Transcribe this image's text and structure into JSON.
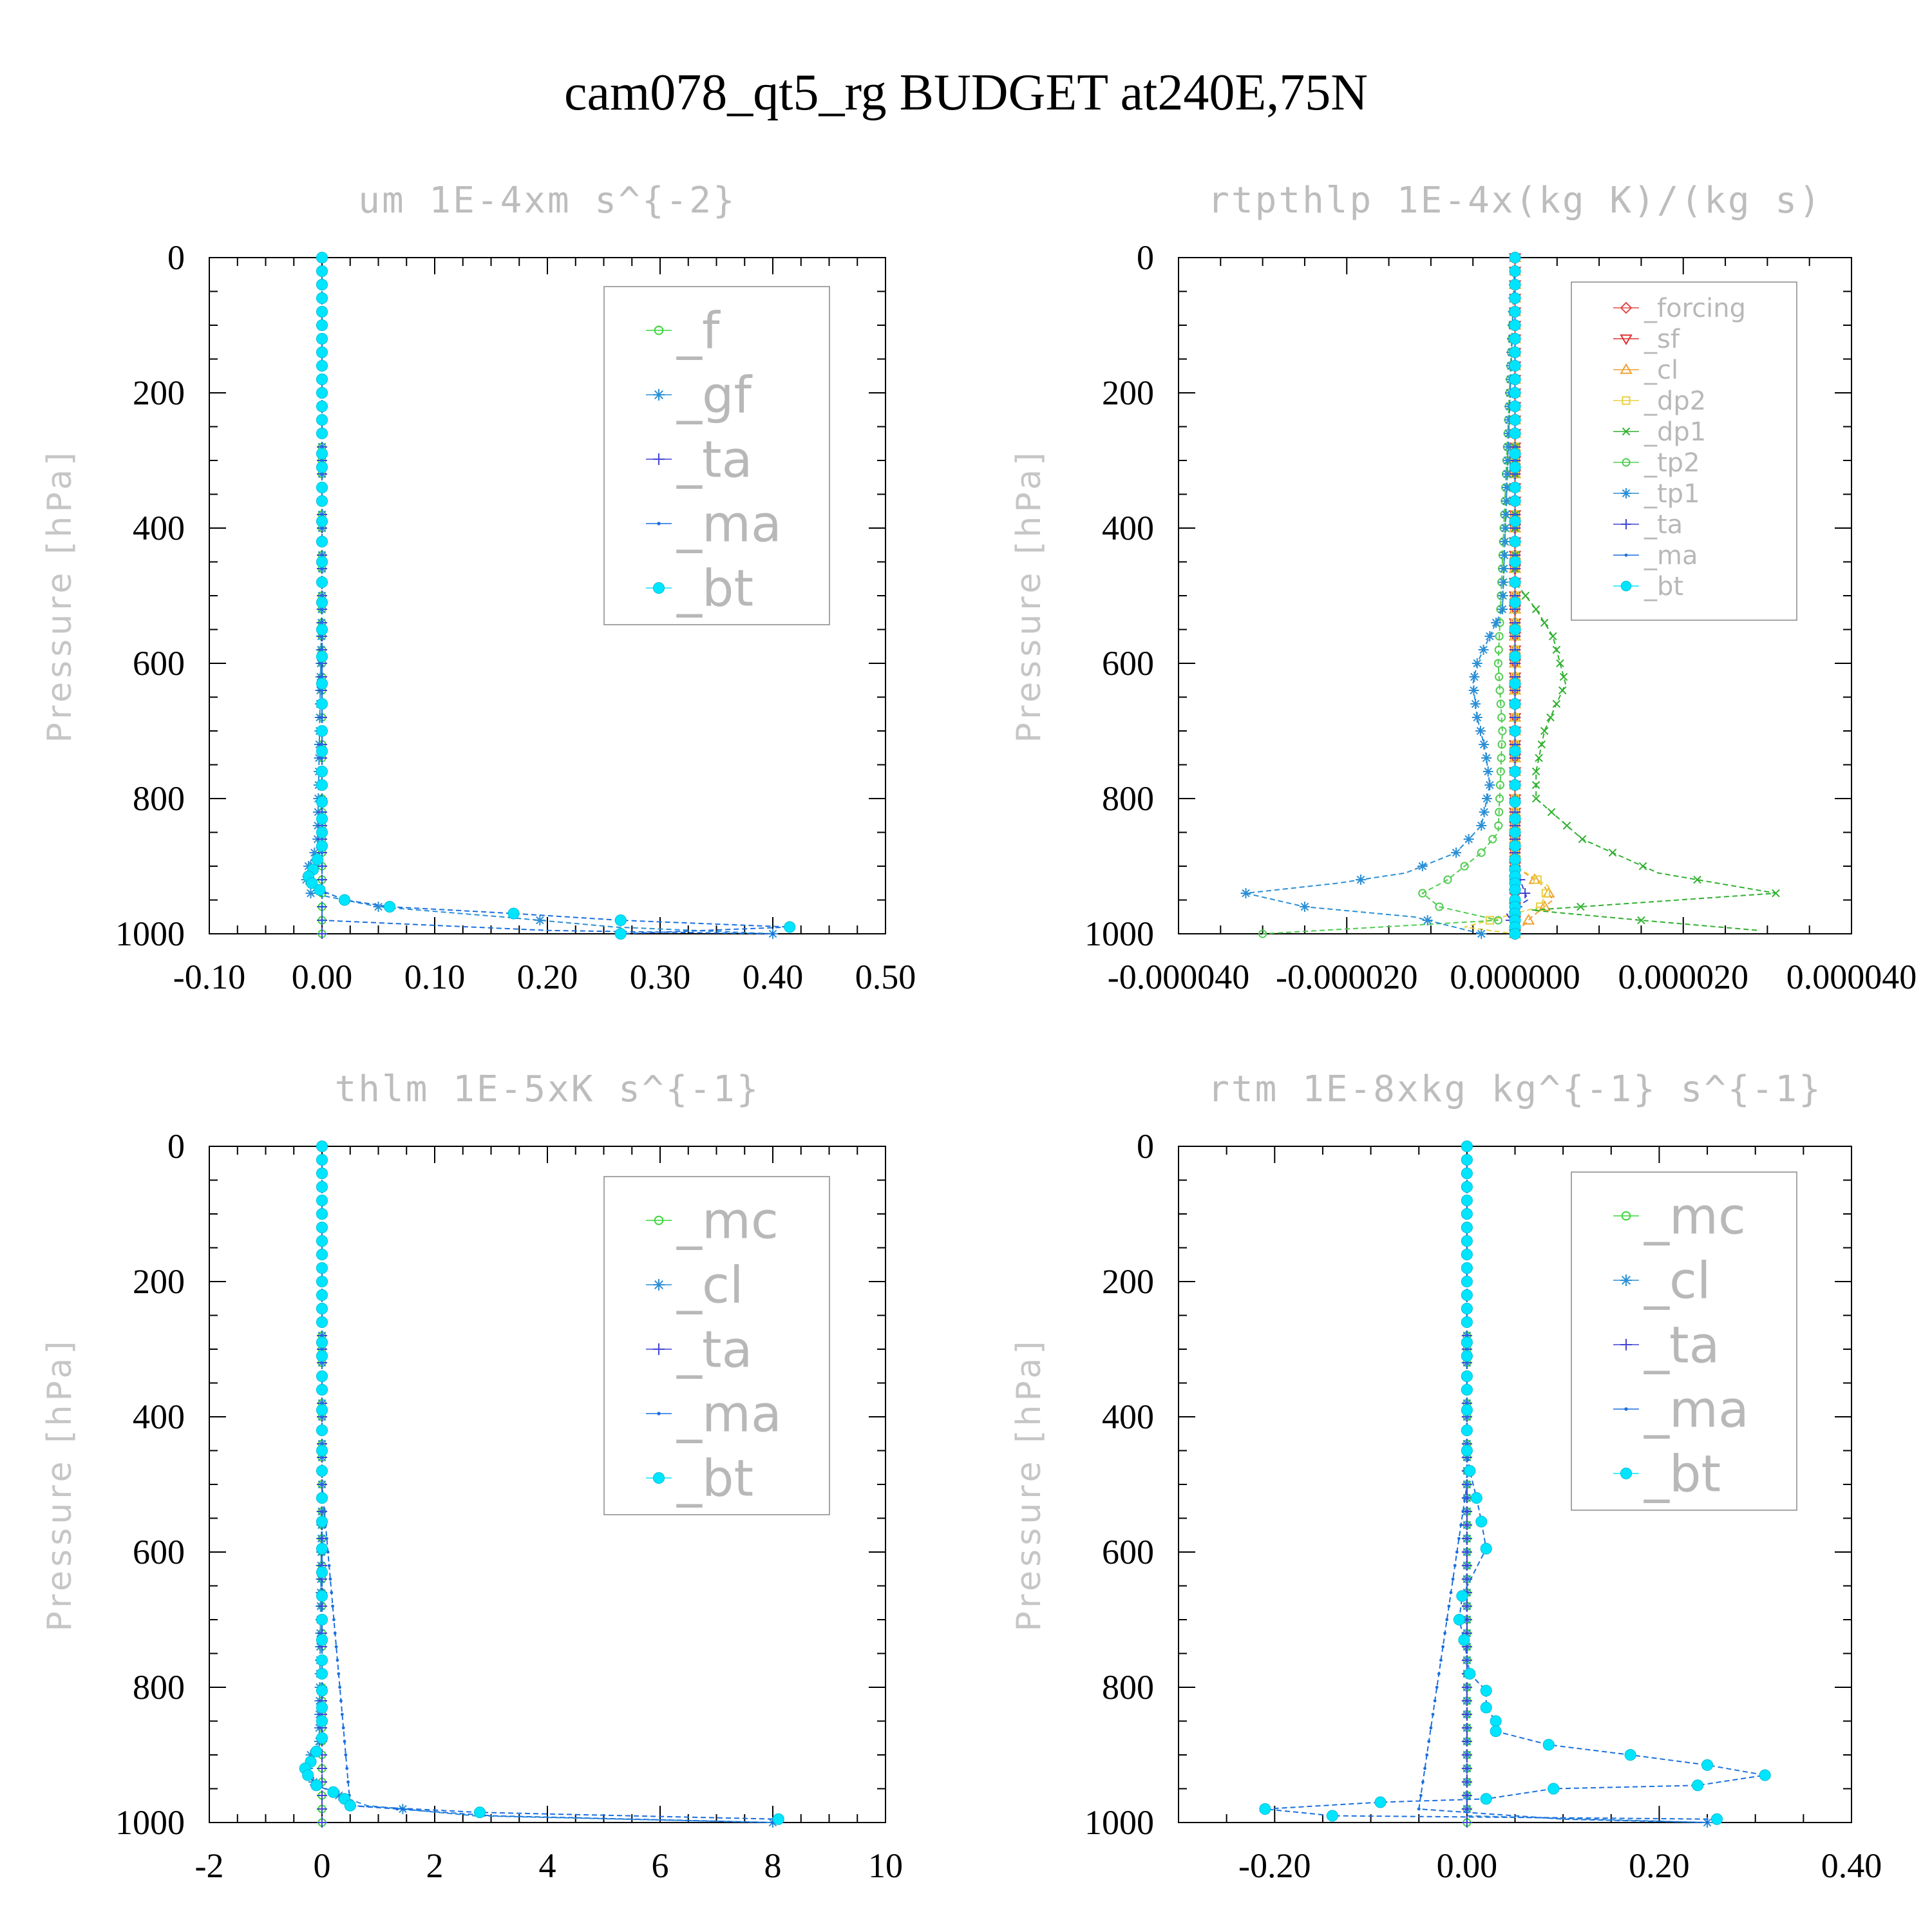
{
  "title": "cam078_qt5_rg  BUDGET at240E,75N",
  "colors": {
    "f": "#39d639",
    "gf": "#2a8fd6",
    "ta": "#4242d6",
    "ma": "#1a6fe0",
    "bt": "#00e5ff",
    "forcing": "#e24a4a",
    "sf": "#e03030",
    "cl_orange": "#f0a030",
    "dp2": "#e8d040",
    "dp1": "#2fb02f",
    "tp2": "#50cc50",
    "tp1": "#2a8fd6",
    "mc": "#39d639",
    "cl": "#2a8fd6",
    "axis": "#000000"
  },
  "chart_data": [
    {
      "type": "line",
      "title": "um  1E-4xm s^{-2}",
      "ylabel": "Pressure [hPa]",
      "xlim": [
        -0.1,
        0.5
      ],
      "ylim": [
        0,
        1000
      ],
      "xticks": [
        "-0.10",
        "0.00",
        "0.10",
        "0.20",
        "0.30",
        "0.40",
        "0.50"
      ],
      "yticks": [
        "0",
        "200",
        "400",
        "600",
        "800",
        "1000"
      ],
      "legend": [
        "_f",
        "_gf",
        "_ta",
        "_ma",
        "_bt"
      ],
      "legend_position": "top-right",
      "series": [
        {
          "name": "_f",
          "p": [
            0,
            500,
            900,
            950,
            1000
          ],
          "x": [
            0,
            0,
            0,
            0,
            0
          ]
        },
        {
          "name": "_gf",
          "p": [
            0,
            500,
            870,
            900,
            920,
            940,
            960,
            975,
            990,
            1000
          ],
          "x": [
            0,
            0,
            -0.004,
            -0.012,
            -0.014,
            -0.01,
            0.05,
            0.16,
            0.26,
            0.4
          ]
        },
        {
          "name": "_ta",
          "p": [
            0,
            500,
            950,
            1000
          ],
          "x": [
            0,
            0,
            0,
            0
          ]
        },
        {
          "name": "_ma",
          "p": [
            0,
            500,
            980,
            995,
            1000
          ],
          "x": [
            0,
            0,
            0,
            0.2,
            0.4
          ]
        },
        {
          "name": "_bt",
          "p": [
            0,
            20,
            40,
            60,
            80,
            100,
            120,
            140,
            160,
            180,
            200,
            220,
            240,
            260,
            290,
            310,
            340,
            360,
            390,
            420,
            450,
            480,
            510,
            550,
            590,
            630,
            660,
            700,
            730,
            760,
            780,
            805,
            830,
            850,
            870,
            890,
            905,
            915,
            925,
            935,
            950,
            960,
            970,
            980,
            990,
            1000
          ],
          "x": [
            0,
            0,
            0,
            0,
            0,
            0,
            0,
            0,
            0,
            0,
            0,
            0,
            0,
            0,
            0,
            0,
            0,
            0,
            0,
            0,
            0,
            0,
            0,
            0,
            0,
            0,
            0,
            0,
            0,
            0,
            0,
            0,
            0,
            0,
            0,
            -0.004,
            -0.008,
            -0.012,
            -0.009,
            -0.002,
            0.02,
            0.06,
            0.17,
            0.265,
            0.415,
            0.265
          ]
        }
      ]
    },
    {
      "type": "line",
      "title": "rtpthlp  1E-4x(kg K)/(kg s)",
      "ylabel": "Pressure [hPa]",
      "xlim": [
        -4e-05,
        4e-05
      ],
      "ylim": [
        0,
        1000
      ],
      "xticks": [
        "-0.000040",
        "-0.000020",
        "0.000000",
        "0.000020",
        "0.000040"
      ],
      "yticks": [
        "0",
        "200",
        "400",
        "600",
        "800",
        "1000"
      ],
      "legend": [
        "_forcing",
        "_sf",
        "_cl",
        "_dp2",
        "_dp1",
        "_tp2",
        "_tp1",
        "_ta",
        "_ma",
        "_bt"
      ],
      "legend_position": "top-right",
      "series": [
        {
          "name": "_forcing",
          "p": [
            0,
            1000
          ],
          "x": [
            0,
            0
          ]
        },
        {
          "name": "_sf",
          "p": [
            0,
            1000
          ],
          "x": [
            0,
            0
          ]
        },
        {
          "name": "_cl",
          "p": [
            0,
            900,
            930,
            950,
            975,
            1000
          ],
          "x": [
            0,
            0,
            3.5e-06,
            4.5e-06,
            2e-06,
            0
          ]
        },
        {
          "name": "_dp2",
          "p": [
            0,
            900,
            930,
            960,
            990,
            1000
          ],
          "x": [
            0,
            0,
            4e-06,
            3e-06,
            -6e-06,
            0
          ]
        },
        {
          "name": "_dp1",
          "p": [
            0,
            480,
            520,
            560,
            630,
            700,
            760,
            800,
            860,
            910,
            940,
            965,
            980,
            995
          ],
          "x": [
            0,
            0,
            2.5e-06,
            4.5e-06,
            6e-06,
            3.5e-06,
            2.5e-06,
            2.5e-06,
            8e-06,
            1.7e-05,
            3.1e-05,
            2e-06,
            1.5e-05,
            2.9e-05
          ]
        },
        {
          "name": "_tp2",
          "p": [
            0,
            600,
            700,
            850,
            880,
            900,
            920,
            940,
            960,
            980,
            1000
          ],
          "x": [
            0,
            -2e-06,
            -1.5e-06,
            -2e-06,
            -4e-06,
            -6e-06,
            -8e-06,
            -1.1e-05,
            -9e-06,
            -2e-06,
            -3e-05
          ]
        },
        {
          "name": "_tp1",
          "p": [
            0,
            520,
            560,
            600,
            630,
            680,
            730,
            780,
            840,
            880,
            910,
            925,
            940,
            960,
            975,
            1000
          ],
          "x": [
            0,
            -1.5e-06,
            -3e-06,
            -4.5e-06,
            -5e-06,
            -4.5e-06,
            -3.5e-06,
            -3e-06,
            -4e-06,
            -7e-06,
            -1.3e-05,
            -2.1e-05,
            -3.2e-05,
            -2.5e-05,
            -1.2e-05,
            -4e-06
          ]
        },
        {
          "name": "_ta",
          "p": [
            0,
            900,
            950,
            970,
            990,
            1000
          ],
          "x": [
            0,
            0,
            1.5e-06,
            -1e-06,
            0,
            0
          ]
        },
        {
          "name": "_ma",
          "p": [
            0,
            1000
          ],
          "x": [
            0,
            0
          ]
        },
        {
          "name": "_bt",
          "p": [
            0,
            20,
            40,
            60,
            80,
            100,
            120,
            140,
            160,
            180,
            200,
            220,
            240,
            260,
            290,
            310,
            340,
            360,
            390,
            420,
            450,
            480,
            510,
            550,
            590,
            630,
            660,
            700,
            730,
            760,
            780,
            805,
            830,
            850,
            870,
            890,
            905,
            915,
            925,
            935,
            950,
            960,
            970,
            980,
            990,
            1000
          ],
          "x": [
            0,
            0,
            0,
            0,
            0,
            0,
            0,
            0,
            0,
            0,
            0,
            0,
            0,
            0,
            0,
            0,
            0,
            0,
            0,
            0,
            0,
            0,
            0,
            0,
            0,
            0,
            0,
            0,
            0,
            0,
            0,
            0,
            0,
            0,
            0,
            0,
            0,
            0,
            0,
            0,
            0,
            0,
            0,
            0,
            0,
            0
          ]
        }
      ]
    },
    {
      "type": "line",
      "title": "thlm  1E-5xK s^{-1}",
      "ylabel": "Pressure [hPa]",
      "xlim": [
        -2,
        10
      ],
      "ylim": [
        0,
        1000
      ],
      "xticks": [
        "-2",
        "0",
        "2",
        "4",
        "6",
        "8",
        "10"
      ],
      "yticks": [
        "0",
        "200",
        "400",
        "600",
        "800",
        "1000"
      ],
      "legend": [
        "_mc",
        "_cl",
        "_ta",
        "_ma",
        "_bt"
      ],
      "legend_position": "top-right",
      "series": [
        {
          "name": "_mc",
          "p": [
            0,
            500,
            950,
            1000
          ],
          "x": [
            0,
            0,
            0,
            0
          ]
        },
        {
          "name": "_cl",
          "p": [
            0,
            500,
            880,
            900,
            920,
            940,
            960,
            975,
            990,
            1000
          ],
          "x": [
            0,
            0,
            -0.05,
            -0.2,
            -0.25,
            -0.15,
            0.3,
            0.8,
            2.7,
            8.0
          ]
        },
        {
          "name": "_ta",
          "p": [
            0,
            500,
            950,
            1000
          ],
          "x": [
            0,
            0,
            0,
            0
          ]
        },
        {
          "name": "_ma",
          "p": [
            0,
            500,
            975,
            990,
            1000
          ],
          "x": [
            0,
            0,
            0.5,
            3.0,
            8.0
          ]
        },
        {
          "name": "_bt",
          "p": [
            0,
            20,
            40,
            60,
            80,
            100,
            120,
            140,
            160,
            180,
            200,
            220,
            240,
            260,
            290,
            310,
            340,
            360,
            390,
            420,
            450,
            480,
            520,
            555,
            595,
            630,
            665,
            700,
            730,
            760,
            780,
            805,
            830,
            850,
            875,
            895,
            910,
            920,
            930,
            945,
            955,
            965,
            975,
            985,
            995
          ],
          "x": [
            0,
            0,
            0,
            0,
            0,
            0,
            0,
            0,
            0,
            0,
            0,
            0,
            0,
            0,
            0,
            0,
            0,
            0,
            0,
            0,
            0,
            0,
            0,
            0,
            0,
            0,
            0,
            0,
            0,
            0,
            0,
            0,
            0,
            0,
            0,
            -0.1,
            -0.2,
            -0.3,
            -0.25,
            -0.1,
            0.2,
            0.4,
            0.5,
            2.8,
            8.1
          ]
        }
      ]
    },
    {
      "type": "line",
      "title": "rtm  1E-8xkg kg^{-1} s^{-1}",
      "ylabel": "Pressure [hPa]",
      "xlim": [
        -0.3,
        0.4
      ],
      "ylim": [
        0,
        1000
      ],
      "xticks": [
        "-0.20",
        "0.00",
        "0.20",
        "0.40"
      ],
      "yticks": [
        "0",
        "200",
        "400",
        "600",
        "800",
        "1000"
      ],
      "legend": [
        "_mc",
        "_cl",
        "_ta",
        "_ma",
        "_bt"
      ],
      "legend_position": "top-right",
      "series": [
        {
          "name": "_mc",
          "p": [
            0,
            500,
            950,
            1000
          ],
          "x": [
            0,
            0,
            0,
            0
          ]
        },
        {
          "name": "_cl",
          "p": [
            0,
            500,
            950,
            990,
            1000
          ],
          "x": [
            0,
            0,
            0,
            0,
            0.25
          ]
        },
        {
          "name": "_ta",
          "p": [
            0,
            500,
            950,
            1000
          ],
          "x": [
            0,
            0,
            0,
            0
          ]
        },
        {
          "name": "_ma",
          "p": [
            0,
            500,
            980,
            995,
            1000
          ],
          "x": [
            0,
            0,
            -0.05,
            0.1,
            0.25
          ]
        },
        {
          "name": "_bt",
          "p": [
            0,
            20,
            40,
            60,
            80,
            100,
            120,
            140,
            160,
            180,
            200,
            220,
            240,
            260,
            290,
            310,
            340,
            360,
            390,
            420,
            450,
            480,
            520,
            555,
            595,
            665,
            700,
            730,
            780,
            805,
            830,
            850,
            865,
            885,
            900,
            915,
            930,
            945,
            950,
            965,
            970,
            980,
            990,
            995
          ],
          "x": [
            0,
            0,
            0,
            0,
            0,
            0,
            0,
            0,
            0,
            0,
            0,
            0,
            0,
            0,
            0,
            0,
            0,
            0,
            0,
            0,
            0,
            0.003,
            0.01,
            0.015,
            0.02,
            -0.005,
            -0.008,
            -0.003,
            0.003,
            0.02,
            0.02,
            0.03,
            0.03,
            0.085,
            0.17,
            0.25,
            0.31,
            0.24,
            0.09,
            0.02,
            -0.09,
            -0.21,
            -0.14,
            0.26
          ]
        }
      ]
    }
  ]
}
